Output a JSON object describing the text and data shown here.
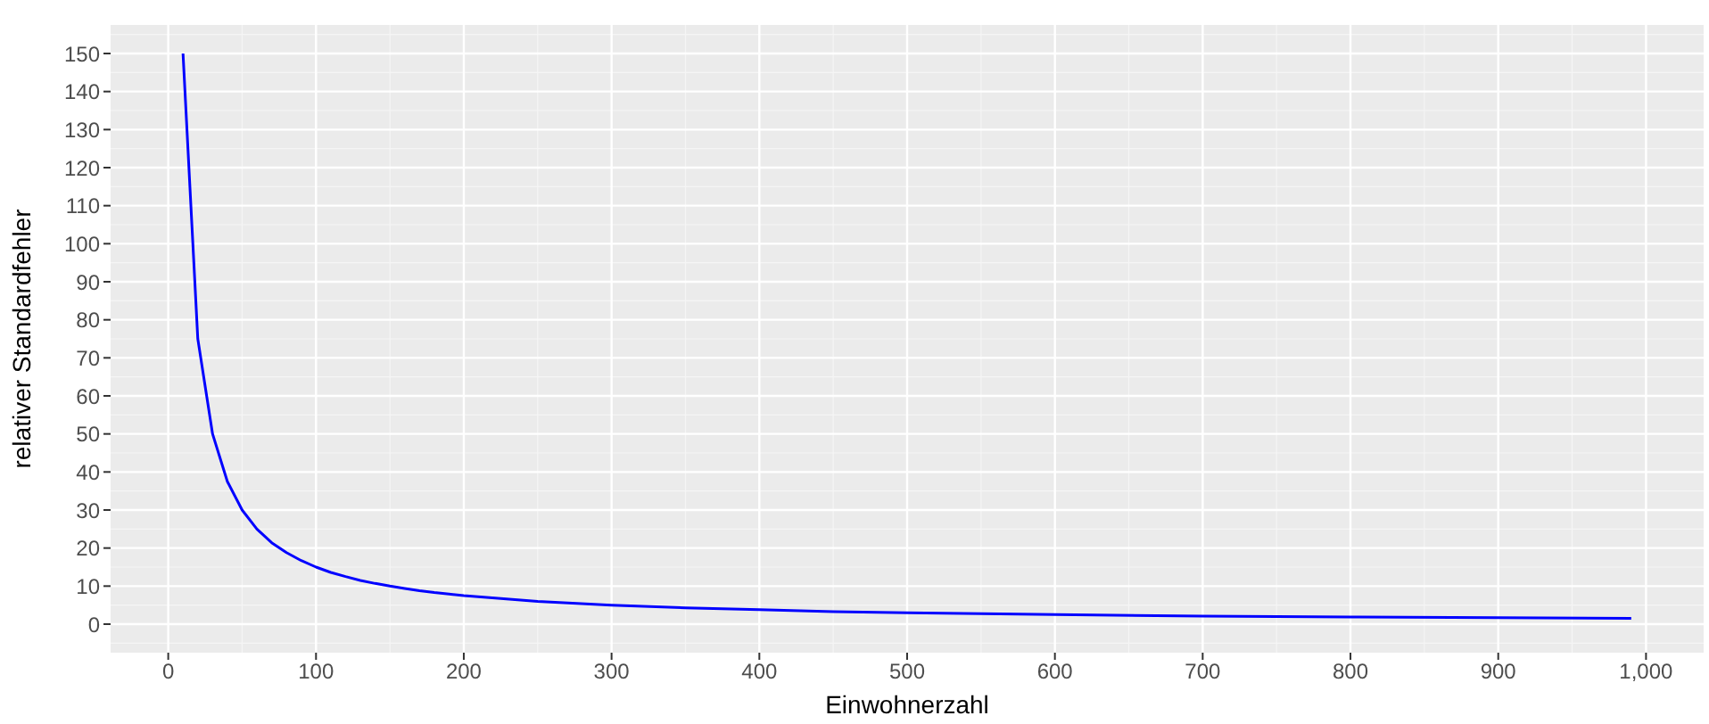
{
  "chart_data": {
    "type": "line",
    "xlabel": "Einwohnerzahl",
    "ylabel": "relativer Standardfehler",
    "series": [
      {
        "color": "#0000ff",
        "x": [
          10,
          20,
          30,
          40,
          50,
          60,
          70,
          80,
          90,
          100,
          110,
          120,
          130,
          140,
          150,
          160,
          170,
          180,
          190,
          200,
          250,
          300,
          350,
          400,
          450,
          500,
          600,
          700,
          800,
          900,
          990
        ],
        "values": [
          150,
          75,
          50,
          37.5,
          30,
          25,
          21.4,
          18.8,
          16.7,
          15,
          13.6,
          12.5,
          11.5,
          10.7,
          10,
          9.4,
          8.8,
          8.3,
          7.9,
          7.5,
          6,
          5,
          4.3,
          3.8,
          3.3,
          3,
          2.5,
          2.1,
          1.9,
          1.7,
          1.5
        ]
      }
    ],
    "xlim": [
      -39,
      1039
    ],
    "ylim": [
      -7.5,
      157.5
    ],
    "xticks": [
      0,
      100,
      200,
      300,
      400,
      500,
      600,
      700,
      800,
      900,
      {
        "value": 1000,
        "label": "1,000"
      }
    ],
    "yticks": [
      0,
      10,
      20,
      30,
      40,
      50,
      60,
      70,
      80,
      90,
      100,
      110,
      120,
      130,
      140,
      150
    ],
    "grid": true,
    "marker": "none",
    "line_style": "solid"
  }
}
